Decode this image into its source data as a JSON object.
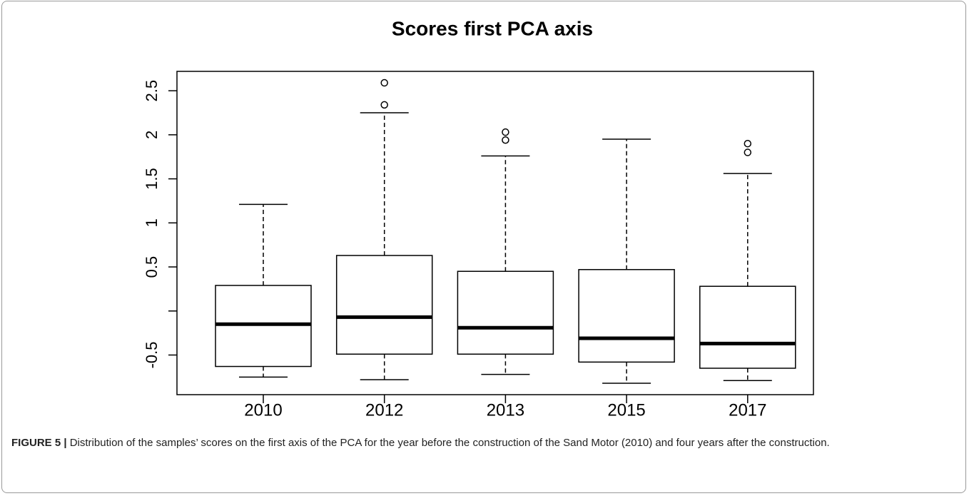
{
  "chart_data": {
    "type": "box",
    "title": "Scores first PCA axis",
    "categories": [
      "2010",
      "2012",
      "2013",
      "2015",
      "2017"
    ],
    "boxes": [
      {
        "whislo": -0.75,
        "q1": -0.63,
        "med": -0.15,
        "q3": 0.29,
        "whishi": 1.21,
        "fliers": []
      },
      {
        "whislo": -0.78,
        "q1": -0.49,
        "med": -0.07,
        "q3": 0.63,
        "whishi": 2.25,
        "fliers": [
          2.34,
          2.59
        ]
      },
      {
        "whislo": -0.72,
        "q1": -0.49,
        "med": -0.19,
        "q3": 0.45,
        "whishi": 1.76,
        "fliers": [
          1.94,
          2.03
        ]
      },
      {
        "whislo": -0.82,
        "q1": -0.58,
        "med": -0.31,
        "q3": 0.47,
        "whishi": 1.95,
        "fliers": []
      },
      {
        "whislo": -0.79,
        "q1": -0.65,
        "med": -0.37,
        "q3": 0.28,
        "whishi": 1.56,
        "fliers": [
          1.8,
          1.9
        ]
      }
    ],
    "color": "#000000",
    "ylim": [
      -0.95,
      2.72
    ],
    "yticks": [
      -0.5,
      {
        "value": 0,
        "label": null
      },
      0.5,
      1.0,
      1.5,
      2.0,
      2.5
    ]
  },
  "caption": {
    "label": "FIGURE 5 |",
    "text": "Distribution of the samples’ scores on the first axis of the PCA for the year before the construction of the Sand Motor (2010) and four years after the construction."
  }
}
